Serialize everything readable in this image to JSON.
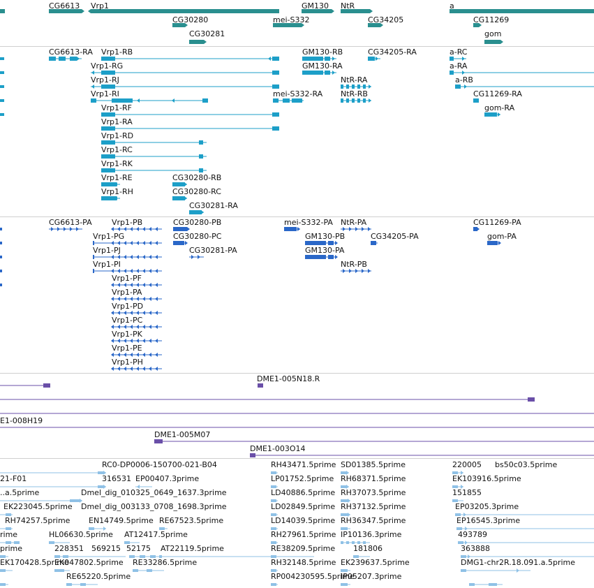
{
  "colors": {
    "gene": "#2a8f8f",
    "mrna": "#1d9fc8",
    "cds": "#2a67c8",
    "clone": "#6a4fa8",
    "est": "#8fc1e6"
  },
  "genes": [
    "CG6613",
    "Vrp1",
    "GM130",
    "NtR",
    "a",
    "CG30280",
    "mei-S332",
    "CG34205",
    "CG11269",
    "CG30281",
    "gom"
  ],
  "transcripts": [
    "CG6613-RA",
    "Vrp1-RB",
    "GM130-RB",
    "CG34205-RA",
    "a-RC",
    "Vrp1-RG",
    "GM130-RA",
    "a-RA",
    "Vrp1-RJ",
    "NtR-RA",
    "a-RB",
    "Vrp1-RI",
    "mei-S332-RA",
    "NtR-RB",
    "CG11269-RA",
    "Vrp1-RF",
    "gom-RA",
    "Vrp1-RA",
    "Vrp1-RD",
    "Vrp1-RC",
    "Vrp1-RK",
    "Vrp1-RE",
    "CG30280-RB",
    "Vrp1-RH",
    "CG30280-RC",
    "CG30281-RA"
  ],
  "proteins": [
    "CG6613-PA",
    "Vrp1-PB",
    "CG30280-PB",
    "mei-S332-PA",
    "NtR-PA",
    "CG11269-PA",
    "Vrp1-PG",
    "CG30280-PC",
    "GM130-PB",
    "CG34205-PA",
    "gom-PA",
    "Vrp1-PJ",
    "CG30281-PA",
    "GM130-PA",
    "Vrp1-PI",
    "NtR-PB",
    "Vrp1-PF",
    "Vrp1-PA",
    "Vrp1-PD",
    "Vrp1-PC",
    "Vrp1-PK",
    "Vrp1-PE",
    "Vrp1-PH"
  ],
  "clones": [
    "DME1-005N18.R",
    "E1-008H19",
    "DME1-005M07",
    "DME1-003O14"
  ],
  "ests": [
    "RC0-DP0006-150700-021-B04",
    "RH43471.5prime",
    "SD01385.5prime",
    "220005",
    "bs50c03.5prime",
    "21-F01",
    "316531",
    "EP00407.3prime",
    "LP01752.5prime",
    "RH68371.5prime",
    "EK103916.5prime",
    "..a.5prime",
    "Dmel_dig_010325_0649_1637.3prime",
    "LD40886.5prime",
    "RH37073.5prime",
    "151855",
    "EK223045.5prime",
    "Dmel_dig_003133_0708_1698.3prime",
    "LD02849.5prime",
    "RH37132.5prime",
    "EP03205.3prime",
    "RH74257.5prime",
    "EN14749.5prime",
    "RE67523.5prime",
    "LD14039.5prime",
    "RH36347.5prime",
    "EP16545.3prime",
    "rime",
    "HL06630.5prime",
    "AT12417.5prime",
    "RH27961.5prime",
    "IP10136.3prime",
    "493789",
    "prime",
    "228351",
    "569215",
    "52175",
    "AT22119.5prime",
    "RE38209.5prime",
    "181806",
    "363888",
    "EK170428.5prime",
    "EK047802.5prime",
    "RE33286.5prime",
    "RH32148.5prime",
    "EK239637.5prime",
    "DMG1-chr2R.18.091.a.5prime",
    "RE65220.5prime",
    "RP004230595.5prime",
    "IP05207.3prime"
  ]
}
